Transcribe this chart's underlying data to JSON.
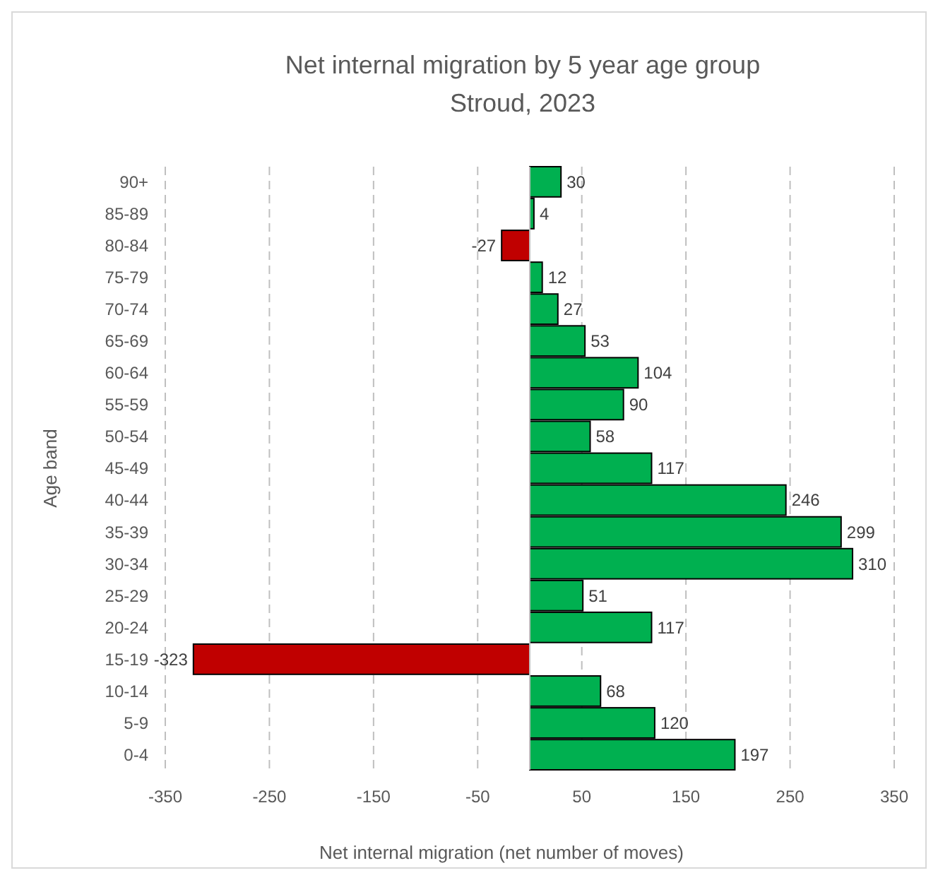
{
  "chart_data": {
    "type": "bar",
    "orientation": "horizontal",
    "title": "Net internal migration by 5 year age group\nStroud, 2023",
    "xlabel": "Net internal migration (net number of moves)",
    "ylabel": "Age band",
    "categories": [
      "90+",
      "85-89",
      "80-84",
      "75-79",
      "70-74",
      "65-69",
      "60-64",
      "55-59",
      "50-54",
      "45-49",
      "40-44",
      "35-39",
      "30-34",
      "25-29",
      "20-24",
      "15-19",
      "10-14",
      "5-9",
      "0-4"
    ],
    "values": [
      30,
      4,
      -27,
      12,
      27,
      53,
      104,
      90,
      58,
      117,
      246,
      299,
      310,
      51,
      117,
      -323,
      68,
      120,
      197
    ],
    "colors": [
      "#00b050",
      "#00b050",
      "#c00000",
      "#00b050",
      "#00b050",
      "#00b050",
      "#00b050",
      "#00b050",
      "#00b050",
      "#00b050",
      "#00b050",
      "#00b050",
      "#00b050",
      "#00b050",
      "#00b050",
      "#c00000",
      "#00b050",
      "#00b050",
      "#00b050"
    ],
    "xlim": [
      -350,
      350
    ],
    "xticks": [
      -350,
      -250,
      -150,
      -50,
      50,
      150,
      250,
      350
    ],
    "grid": "x",
    "data_labels": true
  }
}
